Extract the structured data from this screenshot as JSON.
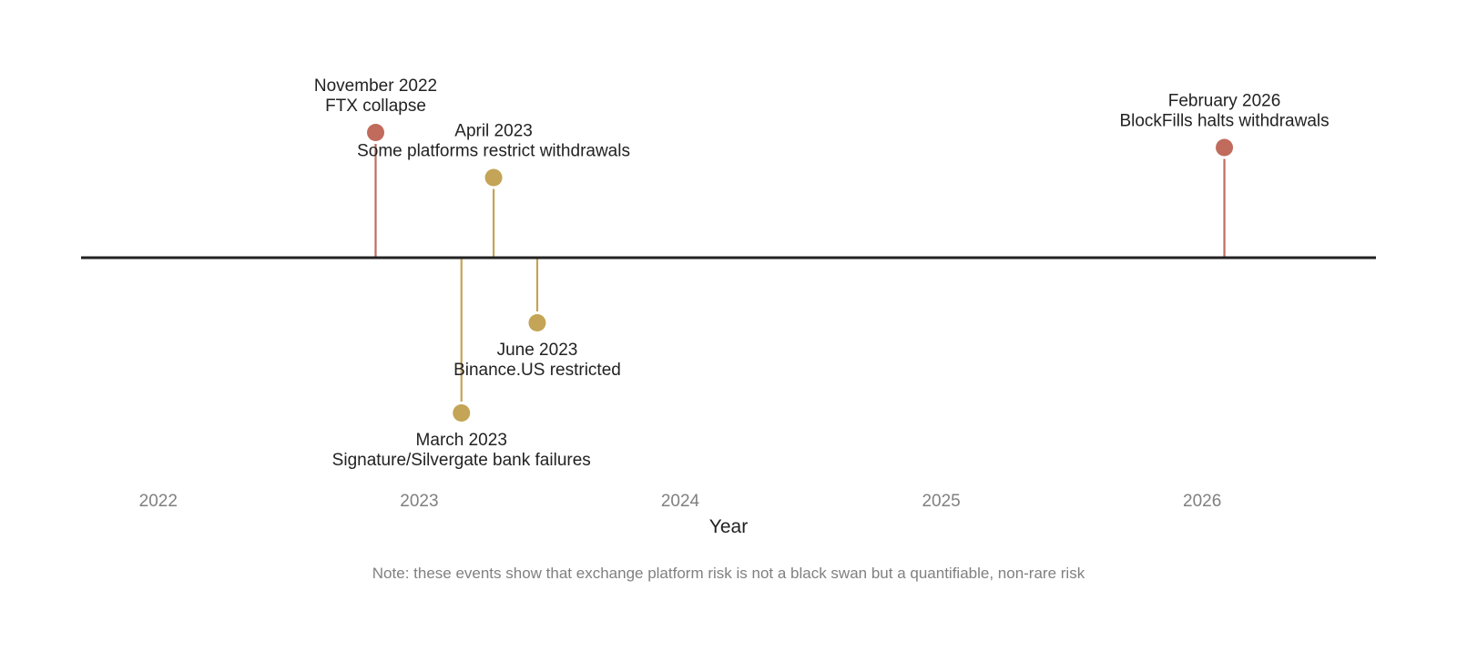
{
  "chart_data": {
    "type": "timeline",
    "xlabel": "Year",
    "x_ticks": [
      2022,
      2023,
      2024,
      2025,
      2026
    ],
    "xlim": [
      "2021-09-15",
      "2026-09-01"
    ],
    "note": "Note: these events show that exchange platform risk is not a black swan but a quantifiable, non-rare risk",
    "colors": {
      "axis": "#222222",
      "major": "#c06b5c",
      "minor": "#c4a456"
    },
    "events": [
      {
        "date": "2022-11-01",
        "title": "November 2022",
        "desc": "FTX collapse",
        "side": "up",
        "level": 5,
        "severity": "major"
      },
      {
        "date": "2023-03-01",
        "title": "March 2023",
        "desc": "Signature/Silvergate bank failures",
        "side": "down",
        "level": 6.2,
        "severity": "minor"
      },
      {
        "date": "2023-04-15",
        "title": "April 2023",
        "desc": "Some platforms restrict withdrawals",
        "side": "up",
        "level": 3.2,
        "severity": "minor"
      },
      {
        "date": "2023-06-15",
        "title": "June 2023",
        "desc": "Binance.US restricted",
        "side": "down",
        "level": 2.6,
        "severity": "minor"
      },
      {
        "date": "2026-02-01",
        "title": "February 2026",
        "desc": "BlockFills halts withdrawals",
        "side": "up",
        "level": 4.4,
        "severity": "major"
      }
    ]
  }
}
